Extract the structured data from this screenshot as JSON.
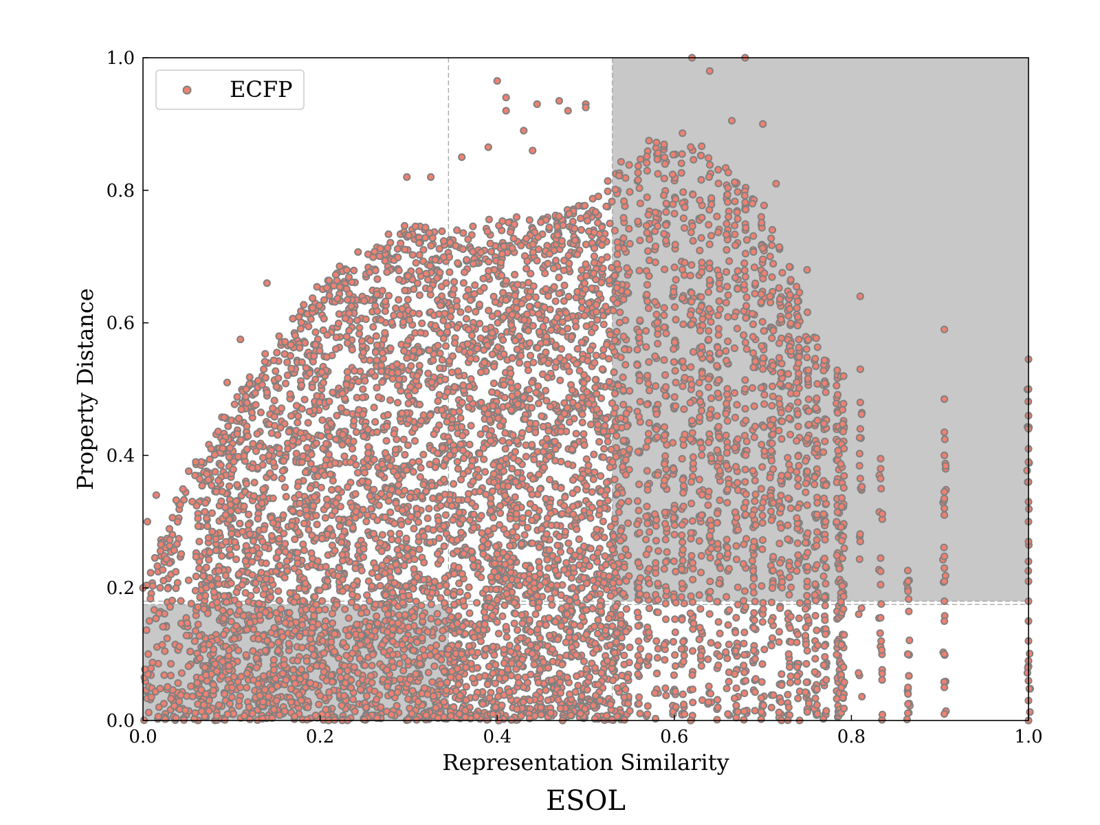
{
  "chart_data": {
    "type": "scatter",
    "caption": "ESOL",
    "xlabel": "Representation Similarity",
    "ylabel": "Property Distance",
    "xlim": [
      0.0,
      1.0
    ],
    "ylim": [
      0.0,
      1.0
    ],
    "xticks": [
      "0.0",
      "0.2",
      "0.4",
      "0.6",
      "0.8",
      "1.0"
    ],
    "yticks": [
      "0.0",
      "0.2",
      "0.4",
      "0.6",
      "0.8",
      "1.0"
    ],
    "grid": false,
    "legend": {
      "position": "top-left",
      "entries": [
        "ECFP"
      ]
    },
    "thresholds": {
      "x_vertical_lines": [
        0.345,
        0.53
      ],
      "y_horizontal_lines": [
        0.175,
        0.18
      ]
    },
    "shaded_regions": [
      {
        "x": [
          0.53,
          1.0
        ],
        "y": [
          0.18,
          1.0
        ]
      },
      {
        "x": [
          0.0,
          0.345
        ],
        "y": [
          0.0,
          0.175
        ]
      }
    ],
    "series": [
      {
        "name": "ECFP",
        "marker_fill": "#f08070",
        "marker_edge": "#808080",
        "envelope": [
          [
            0.0,
            0.2
          ],
          [
            0.05,
            0.38
          ],
          [
            0.1,
            0.48
          ],
          [
            0.15,
            0.58
          ],
          [
            0.2,
            0.66
          ],
          [
            0.25,
            0.72
          ],
          [
            0.3,
            0.75
          ],
          [
            0.35,
            0.74
          ],
          [
            0.4,
            0.76
          ],
          [
            0.45,
            0.76
          ],
          [
            0.5,
            0.78
          ],
          [
            0.55,
            0.86
          ],
          [
            0.6,
            0.9
          ],
          [
            0.65,
            0.85
          ],
          [
            0.7,
            0.78
          ],
          [
            0.72,
            0.72
          ],
          [
            0.74,
            0.66
          ],
          [
            0.76,
            0.58
          ],
          [
            0.79,
            0.52
          ],
          [
            0.81,
            0.47
          ],
          [
            0.84,
            0.35
          ],
          [
            0.87,
            0.21
          ],
          [
            0.9,
            0.48
          ],
          [
            1.0,
            0.5
          ]
        ],
        "dense_columns_x": [
          0.56,
          0.57,
          0.58,
          0.59,
          0.6,
          0.61,
          0.62,
          0.63,
          0.64,
          0.65,
          0.66,
          0.67,
          0.68,
          0.69,
          0.7,
          0.71,
          0.72,
          0.73,
          0.74,
          0.75,
          0.76,
          0.77,
          0.785,
          0.79,
          0.81,
          0.833,
          0.864,
          0.905,
          1.0
        ],
        "outliers": [
          [
            0.005,
            0.3
          ],
          [
            0.015,
            0.34
          ],
          [
            0.0,
            0.2
          ],
          [
            0.11,
            0.575
          ],
          [
            0.095,
            0.51
          ],
          [
            0.14,
            0.66
          ],
          [
            0.298,
            0.82
          ],
          [
            0.325,
            0.82
          ],
          [
            0.4,
            0.965
          ],
          [
            0.41,
            0.94
          ],
          [
            0.41,
            0.92
          ],
          [
            0.445,
            0.93
          ],
          [
            0.47,
            0.935
          ],
          [
            0.48,
            0.92
          ],
          [
            0.5,
            0.93
          ],
          [
            0.5,
            0.925
          ],
          [
            0.43,
            0.89
          ],
          [
            0.39,
            0.865
          ],
          [
            0.36,
            0.85
          ],
          [
            0.44,
            0.86
          ],
          [
            0.62,
            1.0
          ],
          [
            0.64,
            0.98
          ],
          [
            0.68,
            1.0
          ],
          [
            0.665,
            0.905
          ],
          [
            0.7,
            0.9
          ],
          [
            0.715,
            0.81
          ],
          [
            0.75,
            0.68
          ],
          [
            0.81,
            0.64
          ],
          [
            0.81,
            0.53
          ],
          [
            0.81,
            0.48
          ],
          [
            0.81,
            0.44
          ],
          [
            0.81,
            0.365
          ],
          [
            0.81,
            0.27
          ],
          [
            0.833,
            0.395
          ],
          [
            0.833,
            0.38
          ],
          [
            0.833,
            0.365
          ],
          [
            0.833,
            0.245
          ],
          [
            0.833,
            0.225
          ],
          [
            0.833,
            0.205
          ],
          [
            0.833,
            0.155
          ],
          [
            0.864,
            0.21
          ],
          [
            0.864,
            0.195
          ],
          [
            0.864,
            0.1
          ],
          [
            0.864,
            0.05
          ],
          [
            0.864,
            0.04
          ],
          [
            0.864,
            0.025
          ],
          [
            0.905,
            0.59
          ],
          [
            0.905,
            0.485
          ],
          [
            0.905,
            0.435
          ],
          [
            0.905,
            0.4
          ],
          [
            0.905,
            0.345
          ],
          [
            0.905,
            0.335
          ],
          [
            0.905,
            0.32
          ],
          [
            0.905,
            0.31
          ],
          [
            0.905,
            0.23
          ],
          [
            0.905,
            0.21
          ],
          [
            0.905,
            0.18
          ],
          [
            0.905,
            0.15
          ],
          [
            0.905,
            0.1
          ],
          [
            0.905,
            0.05
          ],
          [
            0.905,
            0.01
          ],
          [
            1.0,
            0.545
          ],
          [
            1.0,
            0.5
          ],
          [
            1.0,
            0.46
          ],
          [
            1.0,
            0.44
          ],
          [
            1.0,
            0.41
          ],
          [
            1.0,
            0.39
          ],
          [
            1.0,
            0.36
          ],
          [
            1.0,
            0.33
          ],
          [
            1.0,
            0.3
          ],
          [
            1.0,
            0.27
          ],
          [
            1.0,
            0.24
          ],
          [
            1.0,
            0.21
          ],
          [
            1.0,
            0.18
          ],
          [
            1.0,
            0.15
          ],
          [
            1.0,
            0.12
          ],
          [
            1.0,
            0.09
          ],
          [
            1.0,
            0.06
          ],
          [
            1.0,
            0.03
          ],
          [
            1.0,
            0.0
          ]
        ]
      }
    ]
  }
}
